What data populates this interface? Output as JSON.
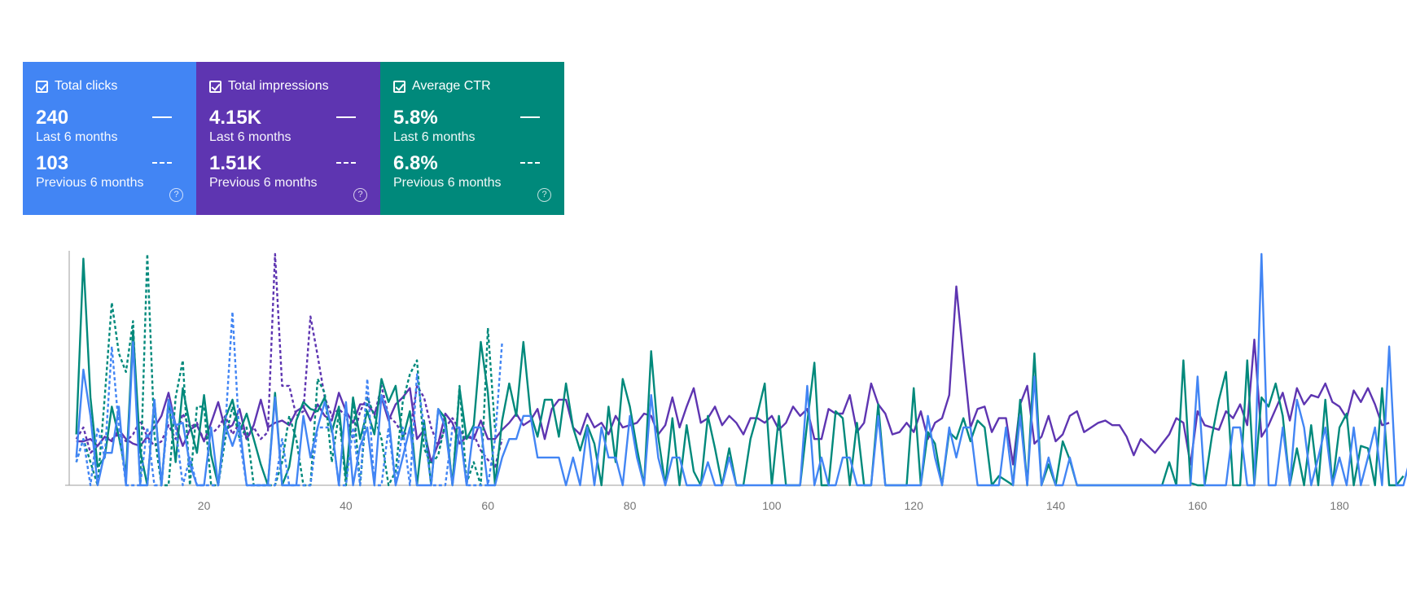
{
  "colors": {
    "clicks": "#4285f4",
    "impressions": "#5e35b1",
    "ctr": "#00897b"
  },
  "metrics": [
    {
      "label": "Total clicks",
      "current": "240",
      "current_period": "Last 6 months",
      "previous": "103",
      "previous_period": "Previous 6 months",
      "color": "#4285f4"
    },
    {
      "label": "Total impressions",
      "current": "4.15K",
      "current_period": "Last 6 months",
      "previous": "1.51K",
      "previous_period": "Previous 6 months",
      "color": "#5e35b1"
    },
    {
      "label": "Average CTR",
      "current": "5.8%",
      "current_period": "Last 6 months",
      "previous": "6.8%",
      "previous_period": "Previous 6 months",
      "color": "#00897b"
    }
  ],
  "chart_data": {
    "type": "line",
    "xlim": [
      1,
      184
    ],
    "ylim": [
      0,
      1
    ],
    "x_ticks": [
      "20",
      "40",
      "60",
      "80",
      "100",
      "120",
      "140",
      "160",
      "180"
    ],
    "grid": false,
    "series": [
      {
        "key": "impressions",
        "period": "current",
        "style": "solid",
        "x_start": 2,
        "values": [
          0.19,
          0.19,
          0.2,
          0.17,
          0.21,
          0.19,
          0.24,
          0.2,
          0.18,
          0.17,
          0.21,
          0.25,
          0.3,
          0.4,
          0.26,
          0.17,
          0.24,
          0.26,
          0.19,
          0.27,
          0.36,
          0.24,
          0.26,
          0.33,
          0.2,
          0.26,
          0.37,
          0.25,
          0.27,
          0.28,
          0.26,
          0.32,
          0.34,
          0.28,
          0.35,
          0.3,
          0.28,
          0.4,
          0.32,
          0.27,
          0.35,
          0.35,
          0.31,
          0.38,
          0.28,
          0.35,
          0.38,
          0.42,
          0.2,
          0.24,
          0.1,
          0.18,
          0.31,
          0.27,
          0.18,
          0.21,
          0.2,
          0.28,
          0.2,
          0.2,
          0.24,
          0.27,
          0.31,
          0.26,
          0.28,
          0.33,
          0.2,
          0.33,
          0.37,
          0.37,
          0.25,
          0.22,
          0.31,
          0.25,
          0.27,
          0.22,
          0.3,
          0.25,
          0.26,
          0.27,
          0.31,
          0.3,
          0.22,
          0.26,
          0.38,
          0.25,
          0.34,
          0.42,
          0.27,
          0.29,
          0.34,
          0.26,
          0.3,
          0.27,
          0.22,
          0.29,
          0.29,
          0.27,
          0.3,
          0.24,
          0.27,
          0.34,
          0.3,
          0.33,
          0.2,
          0.2,
          0.33,
          0.31,
          0.31,
          0.39,
          0.23,
          0.27,
          0.44,
          0.35,
          0.31,
          0.22,
          0.23,
          0.27,
          0.23,
          0.32,
          0.2,
          0.27,
          0.29,
          0.39,
          0.86,
          0.55,
          0.25,
          0.33,
          0.34,
          0.23,
          0.29,
          0.29,
          0.09,
          0.35,
          0.43,
          0.18,
          0.21,
          0.3,
          0.19,
          0.22,
          0.3,
          0.32,
          0.23,
          0.25,
          0.27,
          0.28,
          0.26,
          0.26,
          0.21,
          0.13,
          0.2,
          0.17,
          0.14,
          0.18,
          0.22,
          0.29,
          0.27,
          0.09,
          0.32,
          0.26,
          0.25,
          0.24,
          0.32,
          0.29,
          0.35,
          0.26,
          0.63,
          0.21,
          0.26,
          0.33,
          0.4,
          0.28,
          0.42,
          0.35,
          0.39,
          0.38,
          0.44,
          0.36,
          0.34,
          0.29,
          0.41,
          0.36,
          0.42,
          0.35,
          0.26,
          0.27
        ]
      },
      {
        "key": "impressions",
        "period": "previous",
        "style": "dashed",
        "x_start": 2,
        "values": [
          0.2,
          0.25,
          0.14,
          0.17,
          0.21,
          0.2,
          0.22,
          0.19,
          0.22,
          0.28,
          0.21,
          0.17,
          0.19,
          0.26,
          0.2,
          0.31,
          0.25,
          0.27,
          0.19,
          0.22,
          0.25,
          0.3,
          0.22,
          0.27,
          0.2,
          0.25,
          0.2,
          0.23,
          1.0,
          0.43,
          0.43,
          0.3,
          0.32,
          0.73,
          0.56,
          0.38,
          0.3,
          0.33,
          0.3,
          0.2,
          0.32,
          0.38,
          0.3,
          0.43,
          0.3,
          0.27,
          0.22,
          0.23,
          0.43,
          0.38,
          0.25,
          0.17,
          0.25,
          0.29,
          0.24,
          0.2,
          0.22,
          0.15,
          0.11,
          0.08,
          0.2
        ]
      },
      {
        "key": "ctr",
        "period": "current",
        "style": "solid",
        "x_start": 2,
        "values": [
          0.22,
          0.98,
          0.38,
          0.08,
          0.12,
          0.34,
          0.21,
          0.05,
          0.67,
          0.15,
          0.0,
          0.37,
          0.0,
          0.37,
          0.1,
          0.42,
          0.26,
          0.14,
          0.39,
          0.13,
          0.0,
          0.29,
          0.37,
          0.23,
          0.31,
          0.2,
          0.09,
          0.0,
          0.4,
          0.0,
          0.08,
          0.28,
          0.36,
          0.33,
          0.32,
          0.38,
          0.23,
          0.34,
          0.03,
          0.38,
          0.2,
          0.32,
          0.22,
          0.46,
          0.36,
          0.43,
          0.2,
          0.32,
          0.0,
          0.28,
          0.0,
          0.33,
          0.29,
          0.0,
          0.42,
          0.2,
          0.26,
          0.62,
          0.4,
          0.0,
          0.28,
          0.44,
          0.3,
          0.62,
          0.31,
          0.21,
          0.37,
          0.37,
          0.21,
          0.44,
          0.25,
          0.15,
          0.26,
          0.18,
          0.0,
          0.34,
          0.1,
          0.46,
          0.34,
          0.16,
          0.0,
          0.58,
          0.21,
          0.0,
          0.29,
          0.0,
          0.26,
          0.06,
          0.0,
          0.3,
          0.16,
          0.0,
          0.16,
          0.0,
          0.0,
          0.2,
          0.31,
          0.44,
          0.0,
          0.3,
          0.0,
          0.0,
          0.0,
          0.27,
          0.53,
          0.0,
          0.0,
          0.32,
          0.29,
          0.0,
          0.27,
          0.0,
          0.0,
          0.35,
          0.0,
          0.0,
          0.0,
          0.0,
          0.42,
          0.0,
          0.23,
          0.18,
          0.0,
          0.23,
          0.2,
          0.29,
          0.19,
          0.28,
          0.25,
          0.0,
          0.04,
          0.02,
          0.0,
          0.37,
          0.0,
          0.57,
          0.0,
          0.09,
          0.0,
          0.19,
          0.11,
          0.0,
          0.0,
          0.0,
          0.0,
          0.0,
          0.0,
          0.0,
          0.0,
          0.0,
          0.0,
          0.0,
          0.0,
          0.0,
          0.1,
          0.0,
          0.54,
          0.01,
          0.0,
          0.0,
          0.21,
          0.37,
          0.49,
          0.0,
          0.0,
          0.54,
          0.0,
          0.38,
          0.34,
          0.44,
          0.3,
          0.0,
          0.16,
          0.0,
          0.26,
          0.0,
          0.37,
          0.0,
          0.25,
          0.31,
          0.0,
          0.17,
          0.16,
          0.0,
          0.42,
          0.0,
          0.0,
          0.04
        ]
      },
      {
        "key": "ctr",
        "period": "previous",
        "style": "dashed",
        "x_start": 2,
        "values": [
          0.1,
          0.2,
          0.1,
          0.0,
          0.38,
          0.79,
          0.57,
          0.49,
          0.71,
          0.0,
          1.0,
          0.22,
          0.0,
          0.0,
          0.38,
          0.54,
          0.0,
          0.34,
          0.34,
          0.0,
          0.0,
          0.2,
          0.34,
          0.2,
          0.25,
          0.0,
          0.0,
          0.0,
          0.0,
          0.1,
          0.3,
          0.2,
          0.0,
          0.0,
          0.46,
          0.4,
          0.1,
          0.31,
          0.0,
          0.38,
          0.0,
          0.38,
          0.3,
          0.2,
          0.0,
          0.06,
          0.36,
          0.48,
          0.54,
          0.16,
          0.09,
          0.13,
          0.27,
          0.0,
          0.43,
          0.01,
          0.1,
          0.0,
          0.68,
          0.24
        ]
      },
      {
        "key": "clicks",
        "period": "current",
        "style": "solid",
        "x_start": 2,
        "values": [
          0.12,
          0.5,
          0.3,
          0.0,
          0.14,
          0.14,
          0.34,
          0.0,
          0.62,
          0.0,
          0.0,
          0.37,
          0.0,
          0.37,
          0.26,
          0.27,
          0.09,
          0.0,
          0.0,
          0.25,
          0.0,
          0.26,
          0.17,
          0.26,
          0.0,
          0.0,
          0.0,
          0.0,
          0.38,
          0.0,
          0.0,
          0.0,
          0.3,
          0.12,
          0.25,
          0.36,
          0.25,
          0.0,
          0.36,
          0.0,
          0.17,
          0.25,
          0.0,
          0.39,
          0.3,
          0.0,
          0.12,
          0.25,
          0.0,
          0.0,
          0.0,
          0.33,
          0.25,
          0.0,
          0.25,
          0.0,
          0.25,
          0.25,
          0.0,
          0.0,
          0.12,
          0.2,
          0.2,
          0.3,
          0.3,
          0.12,
          0.12,
          0.12,
          0.12,
          0.0,
          0.12,
          0.0,
          0.25,
          0.0,
          0.25,
          0.12,
          0.12,
          0.0,
          0.3,
          0.12,
          0.0,
          0.39,
          0.12,
          0.0,
          0.12,
          0.12,
          0.0,
          0.0,
          0.0,
          0.1,
          0.0,
          0.0,
          0.12,
          0.0,
          0.0,
          0.0,
          0.0,
          0.0,
          0.0,
          0.0,
          0.0,
          0.0,
          0.0,
          0.43,
          0.0,
          0.12,
          0.0,
          0.0,
          0.12,
          0.12,
          0.0,
          0.0,
          0.0,
          0.3,
          0.0,
          0.0,
          0.0,
          0.0,
          0.0,
          0.0,
          0.3,
          0.12,
          0.0,
          0.25,
          0.12,
          0.25,
          0.25,
          0.0,
          0.0,
          0.0,
          0.0,
          0.25,
          0.0,
          0.3,
          0.0,
          0.47,
          0.0,
          0.12,
          0.0,
          0.0,
          0.12,
          0.0,
          0.0,
          0.0,
          0.0,
          0.0,
          0.0,
          0.0,
          0.0,
          0.0,
          0.0,
          0.0,
          0.0,
          0.0,
          0.0,
          0.0,
          0.0,
          0.0,
          0.47,
          0.0,
          0.0,
          0.0,
          0.0,
          0.25,
          0.25,
          0.0,
          0.0,
          1.0,
          0.0,
          0.0,
          0.25,
          0.0,
          0.37,
          0.25,
          0.0,
          0.12,
          0.25,
          0.0,
          0.12,
          0.0,
          0.25,
          0.0,
          0.12,
          0.25,
          0.0,
          0.6,
          0.0,
          0.0,
          0.12
        ]
      },
      {
        "key": "clicks",
        "period": "previous",
        "style": "dashed",
        "x_start": 2,
        "values": [
          0.1,
          0.2,
          0.0,
          0.25,
          0.12,
          0.6,
          0.25,
          0.0,
          0.0,
          0.0,
          0.25,
          0.0,
          0.0,
          0.33,
          0.25,
          0.0,
          0.12,
          0.0,
          0.0,
          0.0,
          0.0,
          0.25,
          0.75,
          0.2,
          0.0,
          0.0,
          0.0,
          0.0,
          0.0,
          0.2,
          0.0,
          0.0,
          0.0,
          0.0,
          0.25,
          0.25,
          0.25,
          0.0,
          0.0,
          0.25,
          0.0,
          0.46,
          0.0,
          0.0,
          0.25,
          0.0,
          0.25,
          0.0,
          0.48,
          0.25,
          0.0,
          0.0,
          0.0,
          0.25,
          0.25,
          0.0,
          0.0,
          0.0,
          0.0,
          0.2,
          0.62
        ]
      }
    ]
  }
}
